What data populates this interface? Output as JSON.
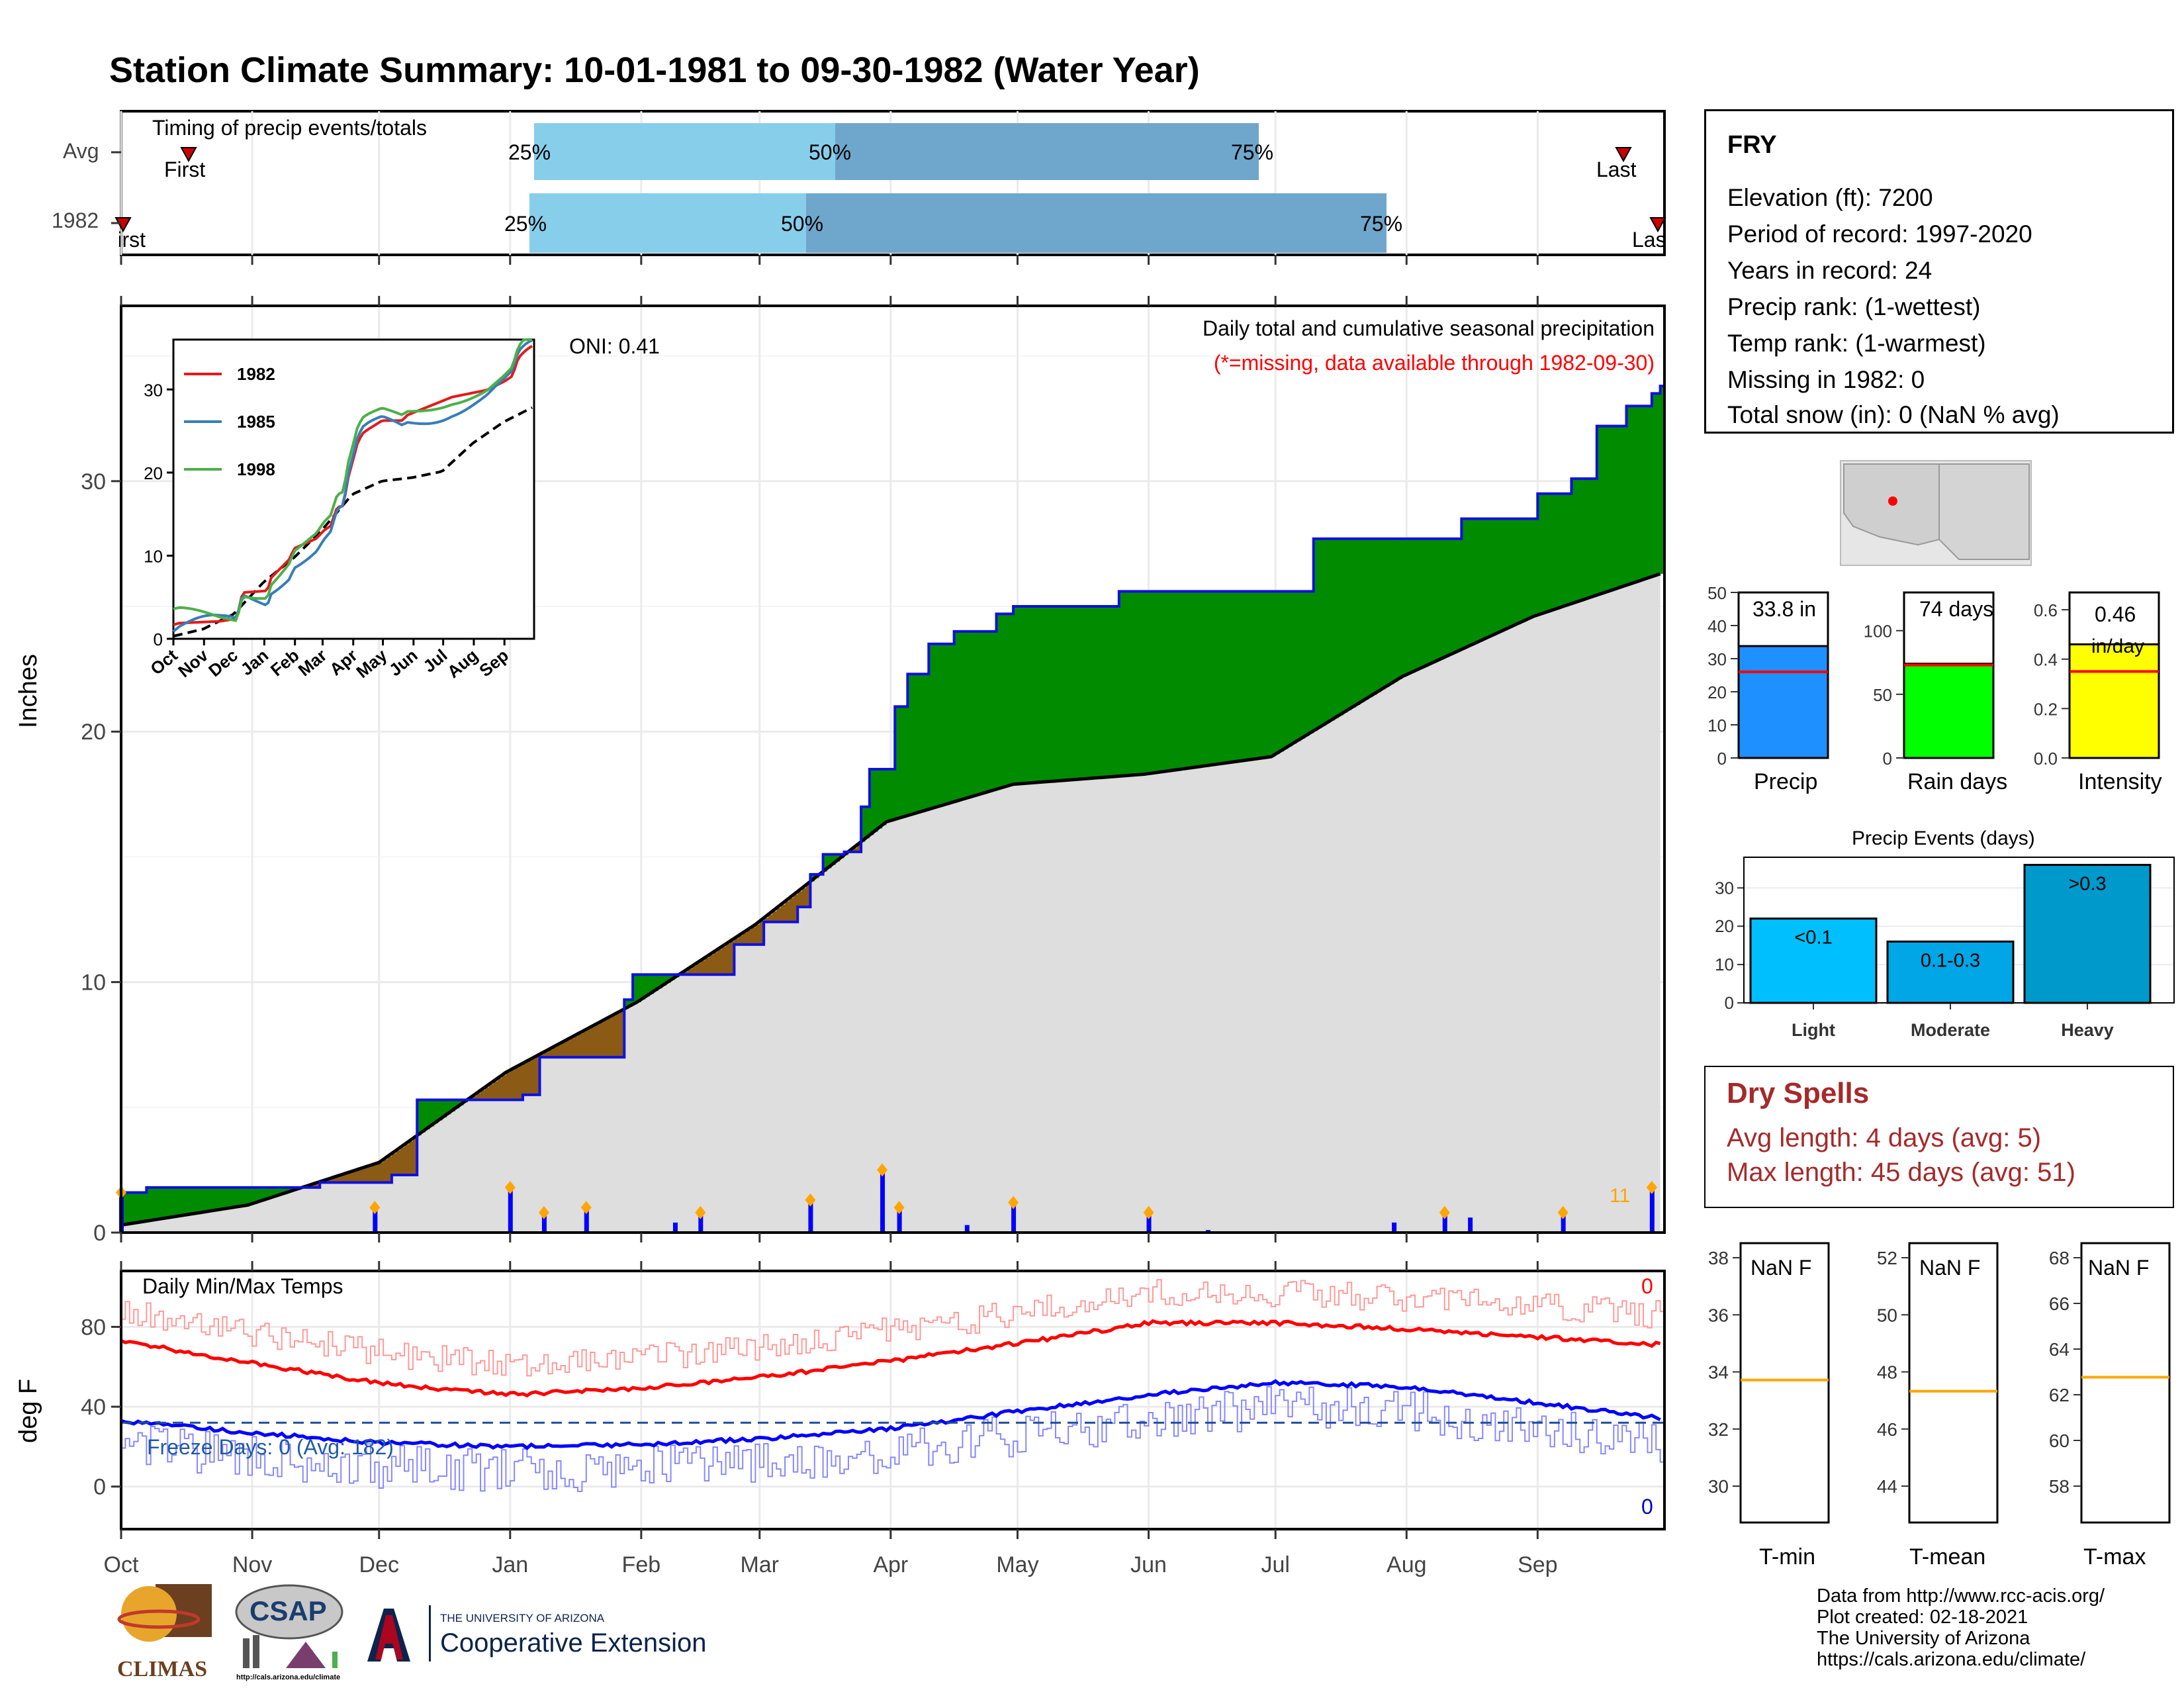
{
  "title": "Station Climate Summary: 10-01-1981 to 09-30-1982 (Water Year)",
  "timing": {
    "label": "Timing of precip events/totals",
    "rows": [
      {
        "name": "Avg",
        "first_label": "First",
        "last_label": "Last",
        "first": "Oct 17",
        "p25": "Jan 1",
        "p50": "Mar 12",
        "p75": "Jul 2",
        "last": "Sep 24"
      },
      {
        "name": "1982",
        "first_label": "First",
        "last_label": "Last",
        "first": "Oct 1",
        "p25": "Jan 1",
        "p50": "Mar 5",
        "p75": "Aug 30",
        "last": "Sep 30"
      }
    ],
    "pct_labels": [
      "25%",
      "50%",
      "75%"
    ],
    "colors": {
      "light": "#87ceeb",
      "dark": "#6fa6cc",
      "marker": "#cc0000"
    }
  },
  "precip_panel": {
    "ylabel": "Inches",
    "caption": "Daily total and cumulative seasonal precipitation",
    "missing_note": "(*=missing, data available through 1982-09-30)",
    "oni": "ONI: 0.41",
    "ymax_label": "11"
  },
  "inset": {
    "legend": [
      "1982",
      "1985",
      "1998"
    ],
    "months": [
      "Oct",
      "Nov",
      "Dec",
      "Jan",
      "Feb",
      "Mar",
      "Apr",
      "May",
      "Jun",
      "Jul",
      "Aug",
      "Sep"
    ],
    "yticks": [
      "0",
      "10",
      "20",
      "30"
    ]
  },
  "temp_panel": {
    "ylabel": "deg F",
    "label": "Daily Min/Max Temps",
    "freeze": "Freeze Days: 0 (Avg: 182)",
    "max_count": "0",
    "min_count": "0"
  },
  "months": [
    "Oct",
    "Nov",
    "Dec",
    "Jan",
    "Feb",
    "Mar",
    "Apr",
    "May",
    "Jun",
    "Jul",
    "Aug",
    "Sep"
  ],
  "station": {
    "name": "FRY",
    "lines": [
      "Elevation (ft): 7200",
      "Period of record: 1997-2020",
      "Years in record: 24",
      "Precip rank:  (1-wettest)",
      "Temp rank:  (1-warmest)",
      "Missing in 1982: 0",
      "Total snow (in): 0 (NaN % avg)"
    ]
  },
  "mini_bars": [
    {
      "label": "Precip",
      "value_label": "33.8 in",
      "value": 33.8,
      "avg": 26,
      "max": 50,
      "ticks": [
        "0",
        "10",
        "20",
        "30",
        "40",
        "50"
      ],
      "color": "#1e90ff"
    },
    {
      "label": "Rain days",
      "value_label": "74 days",
      "value": 74,
      "avg": 73,
      "max": 130,
      "ticks": [
        "0",
        "50",
        "100"
      ],
      "color": "#00ff00"
    },
    {
      "label": "Intensity",
      "value_label": "0.46",
      "unit": "in/day",
      "value": 0.46,
      "avg": 0.35,
      "max": 0.67,
      "ticks": [
        "0.0",
        "0.2",
        "0.4",
        "0.6"
      ],
      "color": "#ffff00"
    }
  ],
  "events": {
    "title": "Precip Events (days)",
    "categories": [
      "Light",
      "Moderate",
      "Heavy"
    ],
    "bar_labels": [
      "<0.1",
      "0.1-0.3",
      ">0.3"
    ],
    "values": [
      22,
      16,
      36
    ],
    "ticks": [
      "0",
      "10",
      "20",
      "30"
    ],
    "colors": [
      "#00bfff",
      "#00a6e6",
      "#0099cc"
    ]
  },
  "dry_spells": {
    "title": "Dry Spells",
    "avg": "Avg length: 4 days (avg: 5)",
    "max": "Max length: 45 days (avg: 51)"
  },
  "temp_boxes": [
    {
      "label": "T-min",
      "value": "NaN F",
      "ticks": [
        "30",
        "32",
        "34",
        "36",
        "38"
      ],
      "avg_frac": 0.49
    },
    {
      "label": "T-mean",
      "value": "NaN F",
      "ticks": [
        "44",
        "46",
        "48",
        "50",
        "52"
      ],
      "avg_frac": 0.53
    },
    {
      "label": "T-max",
      "value": "NaN F",
      "ticks": [
        "58",
        "60",
        "62",
        "64",
        "66",
        "68"
      ],
      "avg_frac": 0.48
    }
  ],
  "footer": {
    "lines": [
      "Data from http://www.rcc-acis.org/",
      "Plot created: 02-18-2021",
      "The University of Arizona",
      "https://cals.arizona.edu/climate/"
    ],
    "logos": {
      "climas": "CLIMAS",
      "csap": "CSAP",
      "csap_url": "http://cals.arizona.edu/climate",
      "ua_top": "THE UNIVERSITY OF ARIZONA",
      "ua_main": "Cooperative Extension"
    }
  },
  "chart_data": {
    "type": "area",
    "title": "Daily total and cumulative seasonal precipitation",
    "ylabel": "Inches",
    "ylim": [
      0,
      37
    ],
    "x_months": [
      "Oct",
      "Nov",
      "Dec",
      "Jan",
      "Feb",
      "Mar",
      "Apr",
      "May",
      "Jun",
      "Jul",
      "Aug",
      "Sep"
    ],
    "series": [
      {
        "name": "1982",
        "x_day": [
          0,
          6,
          47,
          64,
          70,
          95,
          99,
          119,
          121,
          145,
          152,
          160,
          163,
          166,
          171,
          175,
          177,
          183,
          186,
          191,
          197,
          207,
          211,
          214,
          232,
          236,
          282,
          317,
          335,
          343,
          349,
          356,
          362,
          368,
          364
        ],
        "values": [
          1.6,
          1.8,
          2.0,
          2.3,
          5.3,
          5.5,
          7.0,
          9.3,
          10.3,
          11.5,
          12.4,
          13.0,
          14.3,
          15.1,
          15.2,
          17.0,
          18.5,
          21.0,
          22.3,
          23.5,
          24.0,
          24.7,
          25.0,
          25.0,
          25.0,
          25.6,
          27.7,
          28.5,
          29.5,
          30.1,
          32.2,
          33.0,
          33.5,
          33.8,
          33.8
        ]
      },
      {
        "name": "Average",
        "x_day": [
          0,
          30,
          61,
          91,
          122,
          150,
          181,
          211,
          242,
          272,
          303,
          334,
          364
        ],
        "values": [
          0.3,
          1.1,
          2.8,
          6.4,
          9.2,
          12.3,
          16.4,
          17.9,
          18.3,
          19.0,
          22.2,
          24.6,
          26.3
        ]
      }
    ],
    "daily_precip": [
      {
        "day": 0,
        "in": 1.6
      },
      {
        "day": 60,
        "in": 1.0
      },
      {
        "day": 92,
        "in": 1.8
      },
      {
        "day": 100,
        "in": 0.8
      },
      {
        "day": 110,
        "in": 1.0
      },
      {
        "day": 131,
        "in": 0.4
      },
      {
        "day": 137,
        "in": 0.8
      },
      {
        "day": 163,
        "in": 1.3
      },
      {
        "day": 180,
        "in": 2.5
      },
      {
        "day": 184,
        "in": 1.0
      },
      {
        "day": 200,
        "in": 0.3
      },
      {
        "day": 211,
        "in": 1.2
      },
      {
        "day": 243,
        "in": 0.8
      },
      {
        "day": 257,
        "in": 0.1
      },
      {
        "day": 301,
        "in": 0.4
      },
      {
        "day": 313,
        "in": 0.8
      },
      {
        "day": 319,
        "in": 0.6
      },
      {
        "day": 341,
        "in": 0.8
      },
      {
        "day": 362,
        "in": 1.8
      }
    ],
    "temps": {
      "ylim": [
        -18,
        108
      ],
      "freeze_line": 32,
      "avg_max_monthly": [
        73,
        62,
        52,
        46,
        49,
        55,
        63,
        72,
        82,
        82,
        79,
        75
      ],
      "avg_min_monthly": [
        33,
        27,
        22,
        20,
        21,
        24,
        29,
        38,
        46,
        52,
        50,
        42
      ]
    }
  }
}
